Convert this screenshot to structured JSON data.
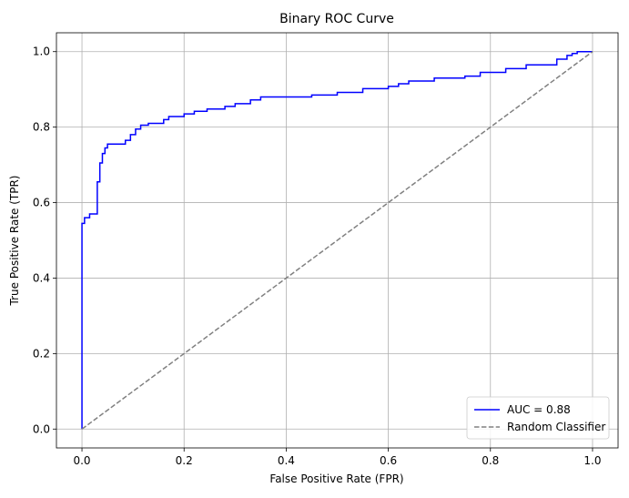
{
  "chart_data": {
    "type": "line",
    "title": "Binary ROC Curve",
    "xlabel": "False Positive Rate (FPR)",
    "ylabel": "True Positive Rate (TPR)",
    "xlim": [
      -0.05,
      1.05
    ],
    "ylim": [
      -0.05,
      1.05
    ],
    "x_ticks": [
      "0.0",
      "0.2",
      "0.4",
      "0.6",
      "0.8",
      "1.0"
    ],
    "y_ticks": [
      "0.0",
      "0.2",
      "0.4",
      "0.6",
      "0.8",
      "1.0"
    ],
    "grid": true,
    "legend_position": "bottom-right",
    "series": [
      {
        "name": "AUC = 0.88",
        "color": "#0000ff",
        "style": "solid",
        "x": [
          0.0,
          0.0,
          0.005,
          0.005,
          0.015,
          0.015,
          0.03,
          0.03,
          0.035,
          0.035,
          0.04,
          0.04,
          0.045,
          0.045,
          0.05,
          0.05,
          0.06,
          0.06,
          0.085,
          0.085,
          0.095,
          0.095,
          0.105,
          0.105,
          0.115,
          0.115,
          0.13,
          0.13,
          0.16,
          0.16,
          0.17,
          0.17,
          0.2,
          0.2,
          0.22,
          0.22,
          0.245,
          0.245,
          0.28,
          0.28,
          0.3,
          0.3,
          0.33,
          0.33,
          0.35,
          0.35,
          0.45,
          0.45,
          0.5,
          0.5,
          0.55,
          0.55,
          0.6,
          0.6,
          0.62,
          0.62,
          0.64,
          0.64,
          0.69,
          0.69,
          0.75,
          0.75,
          0.78,
          0.78,
          0.83,
          0.83,
          0.87,
          0.87,
          0.93,
          0.93,
          0.95,
          0.95,
          0.96,
          0.96,
          0.97,
          0.97,
          0.98,
          0.98,
          1.0
        ],
        "y": [
          0.0,
          0.545,
          0.545,
          0.56,
          0.56,
          0.57,
          0.57,
          0.655,
          0.655,
          0.705,
          0.705,
          0.73,
          0.73,
          0.745,
          0.745,
          0.755,
          0.755,
          0.755,
          0.755,
          0.765,
          0.765,
          0.78,
          0.78,
          0.795,
          0.795,
          0.805,
          0.805,
          0.81,
          0.81,
          0.82,
          0.82,
          0.828,
          0.828,
          0.835,
          0.835,
          0.842,
          0.842,
          0.848,
          0.848,
          0.855,
          0.855,
          0.862,
          0.862,
          0.872,
          0.872,
          0.88,
          0.88,
          0.885,
          0.885,
          0.892,
          0.892,
          0.902,
          0.902,
          0.908,
          0.908,
          0.915,
          0.915,
          0.922,
          0.922,
          0.93,
          0.93,
          0.935,
          0.935,
          0.945,
          0.945,
          0.955,
          0.955,
          0.965,
          0.965,
          0.98,
          0.98,
          0.99,
          0.99,
          0.995,
          0.995,
          1.0,
          1.0,
          1.0,
          1.0
        ]
      },
      {
        "name": "Random Classifier",
        "color": "#808080",
        "style": "dashed",
        "x": [
          0.0,
          1.0
        ],
        "y": [
          0.0,
          1.0
        ]
      }
    ]
  }
}
